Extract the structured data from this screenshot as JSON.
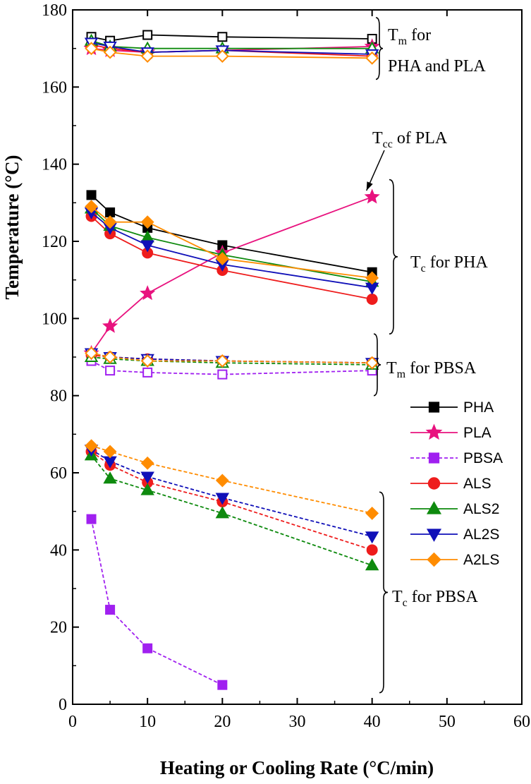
{
  "chart_data": {
    "type": "line",
    "xlabel": "Heating or Cooling Rate (°C/min)",
    "ylabel": "Temperature (°C)",
    "xlim": [
      0,
      60
    ],
    "ylim": [
      0,
      180
    ],
    "xticks": [
      "0",
      "10",
      "20",
      "30",
      "40",
      "50",
      "60"
    ],
    "yticks": [
      "0",
      "20",
      "40",
      "60",
      "80",
      "100",
      "120",
      "140",
      "160",
      "180"
    ],
    "x": [
      2.5,
      5,
      10,
      20,
      40
    ],
    "legend": {
      "placement": "right",
      "entries": [
        {
          "name": "PHA",
          "color": "#000000",
          "marker": "square",
          "dashed": false
        },
        {
          "name": "PLA",
          "color": "#E8127E",
          "marker": "star",
          "dashed": false
        },
        {
          "name": "PBSA",
          "color": "#A020F0",
          "marker": "square",
          "dashed": true
        },
        {
          "name": "ALS",
          "color": "#EE1C1C",
          "marker": "circle",
          "dashed": false
        },
        {
          "name": "ALS2",
          "color": "#0E8A0E",
          "marker": "triangle-up",
          "dashed": false
        },
        {
          "name": "AL2S",
          "color": "#1010B8",
          "marker": "triangle-down",
          "dashed": false
        },
        {
          "name": "A2LS",
          "color": "#FF8C00",
          "marker": "diamond",
          "dashed": false
        }
      ]
    },
    "series": [
      {
        "name": "PHA",
        "group": "Tm",
        "color": "#000000",
        "marker": "square",
        "filled": false,
        "dashed": false,
        "values": [
          173,
          172,
          173.5,
          173,
          172.5
        ]
      },
      {
        "name": "PLA",
        "group": "Tm",
        "color": "#E8127E",
        "marker": "star",
        "filled": true,
        "dashed": false,
        "values": [
          170,
          169.5,
          169,
          169.5,
          170.5
        ]
      },
      {
        "name": "ALS",
        "group": "Tm",
        "color": "#EE1C1C",
        "marker": "circle",
        "filled": false,
        "dashed": false,
        "values": [
          171,
          170,
          169,
          169.5,
          168
        ]
      },
      {
        "name": "ALS2",
        "group": "Tm",
        "color": "#0E8A0E",
        "marker": "triangle-up",
        "filled": false,
        "dashed": false,
        "values": [
          172,
          170.5,
          170,
          170,
          170
        ]
      },
      {
        "name": "AL2S",
        "group": "Tm",
        "color": "#1010B8",
        "marker": "triangle-down",
        "filled": false,
        "dashed": false,
        "values": [
          171.5,
          170.5,
          169,
          169.5,
          168.5
        ]
      },
      {
        "name": "A2LS",
        "group": "Tm",
        "color": "#FF8C00",
        "marker": "diamond",
        "filled": false,
        "dashed": false,
        "values": [
          170,
          169,
          168,
          168,
          167.5
        ]
      },
      {
        "name": "PHA",
        "group": "Tc",
        "color": "#000000",
        "marker": "square",
        "filled": true,
        "dashed": false,
        "values": [
          132,
          127.5,
          123.5,
          119,
          112
        ]
      },
      {
        "name": "PLA",
        "group": "Tcc",
        "color": "#E8127E",
        "marker": "star",
        "filled": true,
        "dashed": false,
        "values": [
          91,
          98,
          106.5,
          117,
          131.5
        ]
      },
      {
        "name": "ALS",
        "group": "Tc",
        "color": "#EE1C1C",
        "marker": "circle",
        "filled": true,
        "dashed": false,
        "values": [
          126.5,
          122,
          117,
          112.5,
          105
        ]
      },
      {
        "name": "ALS2",
        "group": "Tc",
        "color": "#0E8A0E",
        "marker": "triangle-up",
        "filled": true,
        "dashed": false,
        "values": [
          128.5,
          124,
          121,
          116.5,
          109.5
        ]
      },
      {
        "name": "AL2S",
        "group": "Tc",
        "color": "#1010B8",
        "marker": "triangle-down",
        "filled": true,
        "dashed": false,
        "values": [
          127.5,
          123.5,
          119,
          114,
          108
        ]
      },
      {
        "name": "A2LS",
        "group": "Tc",
        "color": "#FF8C00",
        "marker": "diamond",
        "filled": true,
        "dashed": false,
        "values": [
          129,
          125,
          125,
          115.5,
          110.5
        ]
      },
      {
        "name": "PBSA",
        "group": "Tm PBSA",
        "color": "#A020F0",
        "marker": "square",
        "filled": false,
        "dashed": true,
        "values": [
          89,
          86.5,
          86,
          85.5,
          86.5
        ]
      },
      {
        "name": "ALS",
        "group": "Tm PBSA",
        "color": "#EE1C1C",
        "marker": "circle",
        "filled": false,
        "dashed": true,
        "values": [
          90.5,
          90,
          89.5,
          89,
          88.5
        ]
      },
      {
        "name": "ALS2",
        "group": "Tm PBSA",
        "color": "#0E8A0E",
        "marker": "triangle-up",
        "filled": false,
        "dashed": true,
        "values": [
          90,
          89.5,
          89,
          88.5,
          88
        ]
      },
      {
        "name": "AL2S",
        "group": "Tm PBSA",
        "color": "#1010B8",
        "marker": "triangle-down",
        "filled": false,
        "dashed": true,
        "values": [
          91,
          90,
          89.5,
          89,
          88.5
        ]
      },
      {
        "name": "A2LS",
        "group": "Tm PBSA",
        "color": "#FF8C00",
        "marker": "diamond",
        "filled": false,
        "dashed": true,
        "values": [
          91,
          90,
          89,
          89,
          88.5
        ]
      },
      {
        "name": "PBSA",
        "group": "Tc PBSA",
        "color": "#A020F0",
        "marker": "square",
        "filled": true,
        "dashed": true,
        "values": [
          48,
          24.5,
          14.5,
          5,
          null
        ]
      },
      {
        "name": "ALS",
        "group": "Tc PBSA",
        "color": "#EE1C1C",
        "marker": "circle",
        "filled": true,
        "dashed": true,
        "values": [
          65.5,
          62,
          57.5,
          52.5,
          40
        ]
      },
      {
        "name": "ALS2",
        "group": "Tc PBSA",
        "color": "#0E8A0E",
        "marker": "triangle-up",
        "filled": true,
        "dashed": true,
        "values": [
          64.5,
          58.5,
          55.5,
          49.5,
          36
        ]
      },
      {
        "name": "AL2S",
        "group": "Tc PBSA",
        "color": "#1010B8",
        "marker": "triangle-down",
        "filled": true,
        "dashed": true,
        "values": [
          66,
          63,
          59,
          53.5,
          43.5
        ]
      },
      {
        "name": "A2LS",
        "group": "Tc PBSA",
        "color": "#FF8C00",
        "marker": "diamond",
        "filled": true,
        "dashed": true,
        "values": [
          67,
          65.5,
          62.5,
          58,
          49.5
        ]
      }
    ],
    "annotations": [
      {
        "id": "tm-pha-pla",
        "main": "T",
        "sub": "m",
        "text": " for",
        "line2": "PHA and PLA",
        "y_range": [
          162,
          178
        ]
      },
      {
        "id": "tcc-pla",
        "main": "T",
        "sub": "cc",
        "text": " of PLA",
        "arrow_to": [
          40,
          131.5
        ]
      },
      {
        "id": "tc-pha",
        "main": "T",
        "sub": "c",
        "text": " for PHA",
        "y_range": [
          96,
          136
        ]
      },
      {
        "id": "tm-pbsa",
        "main": "T",
        "sub": "m",
        "text": " for PBSA",
        "y_range": [
          80,
          96
        ]
      },
      {
        "id": "tc-pbsa",
        "main": "T",
        "sub": "c",
        "text": " for PBSA",
        "y_range": [
          3,
          55
        ]
      }
    ]
  }
}
